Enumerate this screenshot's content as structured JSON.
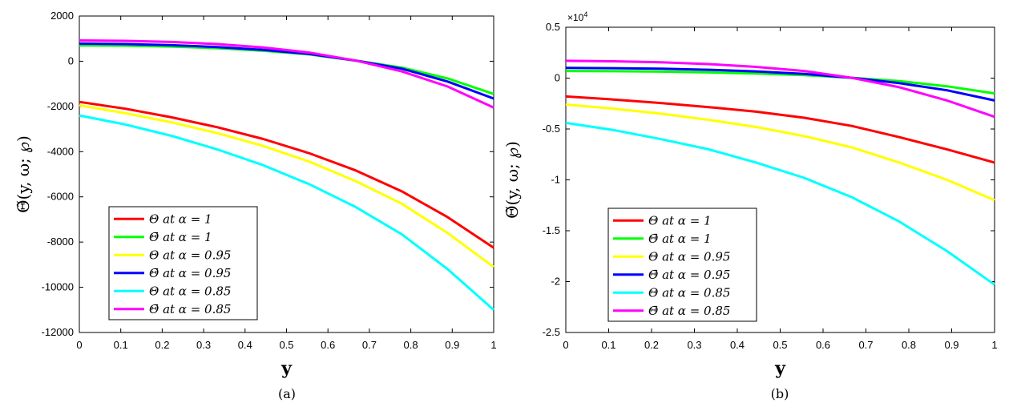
{
  "chart_data": [
    {
      "type": "line",
      "caption": "(a)",
      "xlabel": "y",
      "ylabel": "Θ̃(y, ω; ℘)",
      "xlim": [
        0,
        1
      ],
      "ylim": [
        -12000,
        2000
      ],
      "xticks": [
        "0",
        "0.1",
        "0.2",
        "0.3",
        "0.4",
        "0.5",
        "0.6",
        "0.7",
        "0.8",
        "0.9",
        "1"
      ],
      "yticks": [
        "2000",
        "0",
        "-2000",
        "-4000",
        "-6000",
        "-8000",
        "-10000",
        "-12000"
      ],
      "legend_position": "bottom-left",
      "x": [
        0,
        0.111,
        0.222,
        0.333,
        0.444,
        0.556,
        0.667,
        0.778,
        0.889,
        1
      ],
      "series": [
        {
          "name": "Θ at α = 1",
          "color": "#ff0000",
          "values": [
            -1800,
            -2100,
            -2480,
            -2920,
            -3440,
            -4080,
            -4830,
            -5750,
            -6900,
            -8250
          ]
        },
        {
          "name": "Θ̄ at α = 1",
          "color": "#00ff00",
          "values": [
            700,
            690,
            650,
            580,
            460,
            300,
            30,
            -280,
            -760,
            -1450
          ]
        },
        {
          "name": "Θ at α = 0.95",
          "color": "#ffff00",
          "values": [
            -1950,
            -2300,
            -2700,
            -3180,
            -3750,
            -4450,
            -5300,
            -6300,
            -7600,
            -9100
          ]
        },
        {
          "name": "Θ̄ at α = 0.95",
          "color": "#0000ff",
          "values": [
            780,
            760,
            710,
            630,
            500,
            320,
            30,
            -330,
            -900,
            -1650
          ]
        },
        {
          "name": "Θ at α = 0.85",
          "color": "#00ffff",
          "values": [
            -2400,
            -2800,
            -3300,
            -3900,
            -4600,
            -5450,
            -6450,
            -7650,
            -9200,
            -11000
          ]
        },
        {
          "name": "Θ̄ at α = 0.85",
          "color": "#ff00ff",
          "values": [
            920,
            900,
            850,
            760,
            610,
            380,
            30,
            -450,
            -1120,
            -2050
          ]
        }
      ]
    },
    {
      "type": "line",
      "caption": "(b)",
      "xlabel": "y",
      "ylabel": "Θ̃(y, ω; ℘)",
      "xlim": [
        0,
        1
      ],
      "ylim": [
        -2.5,
        0.5
      ],
      "exponent_label": "×10",
      "exponent_power": "4",
      "xticks": [
        "0",
        "0.1",
        "0.2",
        "0.3",
        "0.4",
        "0.5",
        "0.6",
        "0.7",
        "0.8",
        "0.9",
        "1"
      ],
      "yticks": [
        "0.5",
        "0",
        "-0.5",
        "-1",
        "-1.5",
        "-2",
        "-2.5"
      ],
      "legend_position": "bottom-left",
      "x": [
        0,
        0.111,
        0.222,
        0.333,
        0.444,
        0.556,
        0.667,
        0.778,
        0.889,
        1
      ],
      "series": [
        {
          "name": "Θ at α = 1",
          "color": "#ff0000",
          "values": [
            -0.18,
            -0.21,
            -0.245,
            -0.285,
            -0.33,
            -0.39,
            -0.47,
            -0.58,
            -0.7,
            -0.83
          ]
        },
        {
          "name": "Θ̄ at α = 1",
          "color": "#00ff00",
          "values": [
            0.07,
            0.068,
            0.064,
            0.056,
            0.045,
            0.03,
            0.003,
            -0.03,
            -0.08,
            -0.15
          ]
        },
        {
          "name": "Θ at α = 0.95",
          "color": "#ffff00",
          "values": [
            -0.26,
            -0.3,
            -0.35,
            -0.41,
            -0.48,
            -0.57,
            -0.68,
            -0.83,
            -1.0,
            -1.2
          ]
        },
        {
          "name": "Θ̄ at α = 0.95",
          "color": "#0000ff",
          "values": [
            0.1,
            0.098,
            0.092,
            0.082,
            0.066,
            0.042,
            0.003,
            -0.05,
            -0.12,
            -0.22
          ]
        },
        {
          "name": "Θ at α = 0.85",
          "color": "#00ffff",
          "values": [
            -0.44,
            -0.51,
            -0.6,
            -0.7,
            -0.83,
            -0.98,
            -1.17,
            -1.41,
            -1.7,
            -2.03
          ]
        },
        {
          "name": "Θ̄ at α = 0.85",
          "color": "#ff00ff",
          "values": [
            0.17,
            0.165,
            0.155,
            0.138,
            0.11,
            0.07,
            0.003,
            -0.09,
            -0.22,
            -0.38
          ]
        }
      ]
    }
  ]
}
